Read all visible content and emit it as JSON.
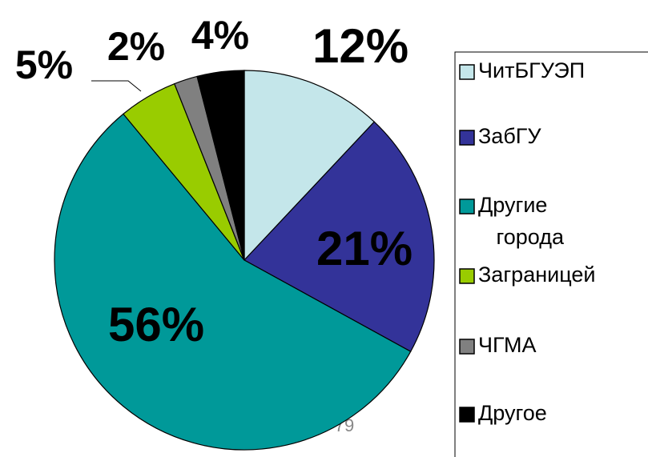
{
  "chart_data": {
    "type": "pie",
    "categories": [
      "ЧитБГУЭП",
      "ЗабГУ",
      "Другие города",
      "Заграницей",
      "ЧГМА",
      "Другое"
    ],
    "values": [
      12,
      21,
      56,
      5,
      2,
      4
    ],
    "value_labels": [
      "12%",
      "21%",
      "56%",
      "5%",
      "2%",
      "4%"
    ],
    "colors": [
      "#c4e6ea",
      "#333399",
      "#009999",
      "#99cc00",
      "#808080",
      "#000000"
    ],
    "legend": "right"
  },
  "page_number": "79"
}
